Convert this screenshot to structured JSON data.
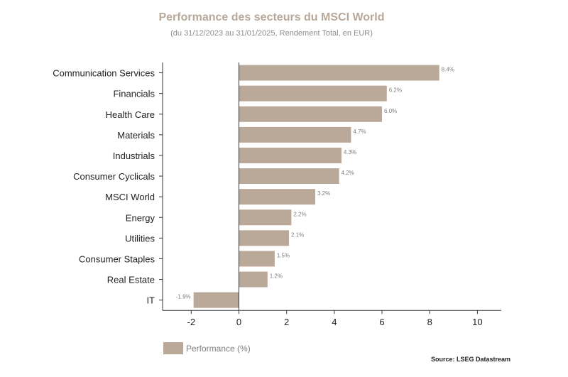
{
  "chart_data": {
    "type": "bar",
    "orientation": "horizontal",
    "title": "Performance des secteurs du MSCI World",
    "subtitle": "(du 31/12/2023 au 31/01/2025, Rendement Total, en EUR)",
    "categories": [
      "Communication Services",
      "Financials",
      "Health Care",
      "Materials",
      "Industrials",
      "Consumer Cyclicals",
      "MSCI World",
      "Energy",
      "Utilities",
      "Consumer Staples",
      "Real Estate",
      "IT"
    ],
    "values": [
      8.4,
      6.2,
      6.0,
      4.7,
      4.3,
      4.2,
      3.2,
      2.2,
      2.1,
      1.5,
      1.2,
      -1.9
    ],
    "data_labels": [
      "8.4%",
      "6.2%",
      "6.0%",
      "4.7%",
      "4.3%",
      "4.2%",
      "3.2%",
      "2.2%",
      "2.1%",
      "1.5%",
      "1.2%",
      "-1.9%"
    ],
    "xlim": [
      -3.2,
      11
    ],
    "xticks": [
      -2,
      0,
      2,
      4,
      6,
      8,
      10
    ],
    "xtick_labels": [
      "-2",
      "0",
      "2",
      "4",
      "6",
      "8",
      "10"
    ],
    "legend": {
      "label": "Performance (%)",
      "position": "bottom-left"
    },
    "source": "Source: LSEG Datastream",
    "colors": {
      "bar": "#baa899",
      "title": "#b8a89a",
      "axis": "#333333",
      "data_label": "#7f7f7f"
    }
  }
}
